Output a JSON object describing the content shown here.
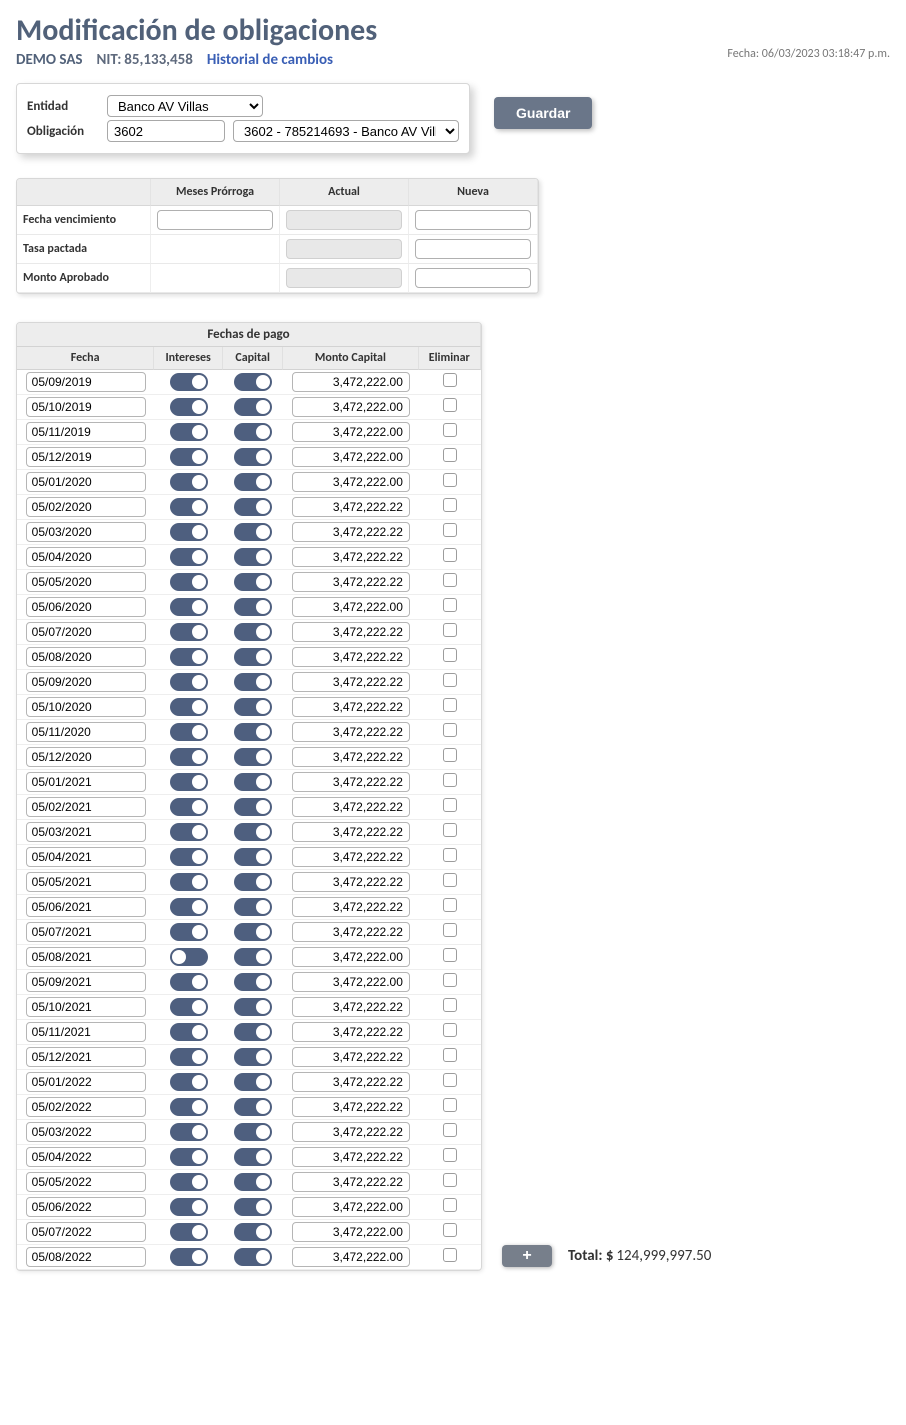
{
  "page": {
    "title": "Modificación de obligaciones",
    "company": "DEMO SAS",
    "nit_label": "NIT:",
    "nit_value": "85,133,458",
    "history_link": "Historial de cambios",
    "fecha_label": "Fecha:",
    "fecha_value": "06/03/2023 03:18:47 p.m."
  },
  "form": {
    "entidad_label": "Entidad",
    "entidad_value": "Banco AV Villas",
    "obligacion_label": "Obligación",
    "obligacion_code": "3602",
    "obligacion_select": "3602 - 785214693 - Banco AV Villas",
    "guardar": "Guardar"
  },
  "small_table": {
    "col_empty": "",
    "col_meses": "Meses Prórroga",
    "col_actual": "Actual",
    "col_nueva": "Nueva",
    "row1": "Fecha vencimiento",
    "row2": "Tasa pactada",
    "row3": "Monto Aprobado"
  },
  "pay_table": {
    "title": "Fechas de pago",
    "col_fecha": "Fecha",
    "col_intereses": "Intereses",
    "col_capital": "Capital",
    "col_monto": "Monto Capital",
    "col_eliminar": "Eliminar"
  },
  "rows": [
    {
      "fecha": "05/09/2019",
      "int": "on",
      "cap": "on",
      "monto": "3,472,222.00"
    },
    {
      "fecha": "05/10/2019",
      "int": "on",
      "cap": "on",
      "monto": "3,472,222.00"
    },
    {
      "fecha": "05/11/2019",
      "int": "on",
      "cap": "on",
      "monto": "3,472,222.00"
    },
    {
      "fecha": "05/12/2019",
      "int": "on",
      "cap": "on",
      "monto": "3,472,222.00"
    },
    {
      "fecha": "05/01/2020",
      "int": "on",
      "cap": "on",
      "monto": "3,472,222.00"
    },
    {
      "fecha": "05/02/2020",
      "int": "on",
      "cap": "on",
      "monto": "3,472,222.22"
    },
    {
      "fecha": "05/03/2020",
      "int": "on",
      "cap": "on",
      "monto": "3,472,222.22"
    },
    {
      "fecha": "05/04/2020",
      "int": "on",
      "cap": "on",
      "monto": "3,472,222.22"
    },
    {
      "fecha": "05/05/2020",
      "int": "on",
      "cap": "on",
      "monto": "3,472,222.22"
    },
    {
      "fecha": "05/06/2020",
      "int": "on",
      "cap": "on",
      "monto": "3,472,222.00"
    },
    {
      "fecha": "05/07/2020",
      "int": "on",
      "cap": "on",
      "monto": "3,472,222.22"
    },
    {
      "fecha": "05/08/2020",
      "int": "on",
      "cap": "on",
      "monto": "3,472,222.22"
    },
    {
      "fecha": "05/09/2020",
      "int": "on",
      "cap": "on",
      "monto": "3,472,222.22"
    },
    {
      "fecha": "05/10/2020",
      "int": "on",
      "cap": "on",
      "monto": "3,472,222.22"
    },
    {
      "fecha": "05/11/2020",
      "int": "on",
      "cap": "on",
      "monto": "3,472,222.22"
    },
    {
      "fecha": "05/12/2020",
      "int": "on",
      "cap": "on",
      "monto": "3,472,222.22"
    },
    {
      "fecha": "05/01/2021",
      "int": "on",
      "cap": "on",
      "monto": "3,472,222.22"
    },
    {
      "fecha": "05/02/2021",
      "int": "on",
      "cap": "on",
      "monto": "3,472,222.22"
    },
    {
      "fecha": "05/03/2021",
      "int": "on",
      "cap": "on",
      "monto": "3,472,222.22"
    },
    {
      "fecha": "05/04/2021",
      "int": "on",
      "cap": "on",
      "monto": "3,472,222.22"
    },
    {
      "fecha": "05/05/2021",
      "int": "on",
      "cap": "on",
      "monto": "3,472,222.22"
    },
    {
      "fecha": "05/06/2021",
      "int": "on",
      "cap": "on",
      "monto": "3,472,222.22"
    },
    {
      "fecha": "05/07/2021",
      "int": "on",
      "cap": "on",
      "monto": "3,472,222.22"
    },
    {
      "fecha": "05/08/2021",
      "int": "off",
      "cap": "on",
      "monto": "3,472,222.00"
    },
    {
      "fecha": "05/09/2021",
      "int": "on",
      "cap": "on",
      "monto": "3,472,222.00"
    },
    {
      "fecha": "05/10/2021",
      "int": "on",
      "cap": "on",
      "monto": "3,472,222.22"
    },
    {
      "fecha": "05/11/2021",
      "int": "on",
      "cap": "on",
      "monto": "3,472,222.22"
    },
    {
      "fecha": "05/12/2021",
      "int": "on",
      "cap": "on",
      "monto": "3,472,222.22"
    },
    {
      "fecha": "05/01/2022",
      "int": "on",
      "cap": "on",
      "monto": "3,472,222.22"
    },
    {
      "fecha": "05/02/2022",
      "int": "on",
      "cap": "on",
      "monto": "3,472,222.22"
    },
    {
      "fecha": "05/03/2022",
      "int": "on",
      "cap": "on",
      "monto": "3,472,222.22"
    },
    {
      "fecha": "05/04/2022",
      "int": "on",
      "cap": "on",
      "monto": "3,472,222.22"
    },
    {
      "fecha": "05/05/2022",
      "int": "on",
      "cap": "on",
      "monto": "3,472,222.22"
    },
    {
      "fecha": "05/06/2022",
      "int": "on",
      "cap": "on",
      "monto": "3,472,222.00"
    },
    {
      "fecha": "05/07/2022",
      "int": "on",
      "cap": "on",
      "monto": "3,472,222.00"
    },
    {
      "fecha": "05/08/2022",
      "int": "on",
      "cap": "on",
      "monto": "3,472,222.00"
    }
  ],
  "footer": {
    "plus": "+",
    "total_label": "Total: $",
    "total_value": "124,999,997.50"
  }
}
